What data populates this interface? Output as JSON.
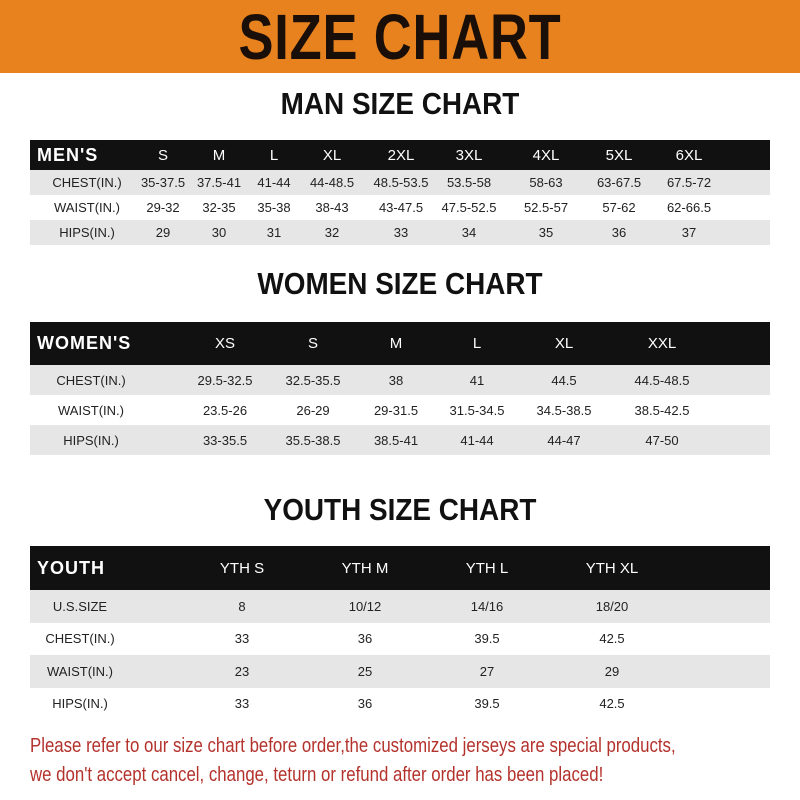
{
  "title": "SIZE CHART",
  "colors": {
    "banner": "#e8821e",
    "header_row": "#111111",
    "alt_row": "#e6e6e6",
    "note": "#b4322c"
  },
  "tables": [
    {
      "heading": "MAN SIZE CHART",
      "header": [
        "MEN'S",
        "S",
        "M",
        "L",
        "XL",
        "2XL",
        "3XL",
        "4XL",
        "5XL",
        "6XL"
      ],
      "rows": [
        [
          "CHEST(IN.)",
          "35-37.5",
          "37.5-41",
          "41-44",
          "44-48.5",
          "48.5-53.5",
          "53.5-58",
          "58-63",
          "63-67.5",
          "67.5-72"
        ],
        [
          "WAIST(IN.)",
          "29-32",
          "32-35",
          "35-38",
          "38-43",
          "43-47.5",
          "47.5-52.5",
          "52.5-57",
          "57-62",
          "62-66.5"
        ],
        [
          "HIPS(IN.)",
          "29",
          "30",
          "31",
          "32",
          "33",
          "34",
          "35",
          "36",
          "37"
        ]
      ]
    },
    {
      "heading": "WOMEN SIZE CHART",
      "header": [
        "WOMEN'S",
        "XS",
        "S",
        "M",
        "L",
        "XL",
        "XXL"
      ],
      "rows": [
        [
          "CHEST(IN.)",
          "29.5-32.5",
          "32.5-35.5",
          "38",
          "41",
          "44.5",
          "44.5-48.5"
        ],
        [
          "WAIST(IN.)",
          "23.5-26",
          "26-29",
          "29-31.5",
          "31.5-34.5",
          "34.5-38.5",
          "38.5-42.5"
        ],
        [
          "HIPS(IN.)",
          "33-35.5",
          "35.5-38.5",
          "38.5-41",
          "41-44",
          "44-47",
          "47-50"
        ]
      ]
    },
    {
      "heading": "YOUTH SIZE CHART",
      "header": [
        "YOUTH",
        "YTH S",
        "YTH M",
        "YTH L",
        "YTH XL"
      ],
      "rows": [
        [
          "U.S.SIZE",
          "8",
          "10/12",
          "14/16",
          "18/20"
        ],
        [
          "CHEST(IN.)",
          "33",
          "36",
          "39.5",
          "42.5"
        ],
        [
          "WAIST(IN.)",
          "23",
          "25",
          "27",
          "29"
        ],
        [
          "HIPS(IN.)",
          "33",
          "36",
          "39.5",
          "42.5"
        ]
      ]
    }
  ],
  "note": [
    "Please refer to our size chart before order,the customized jerseys are special products,",
    "we don't accept cancel, change, teturn or refund after order has been placed!"
  ]
}
